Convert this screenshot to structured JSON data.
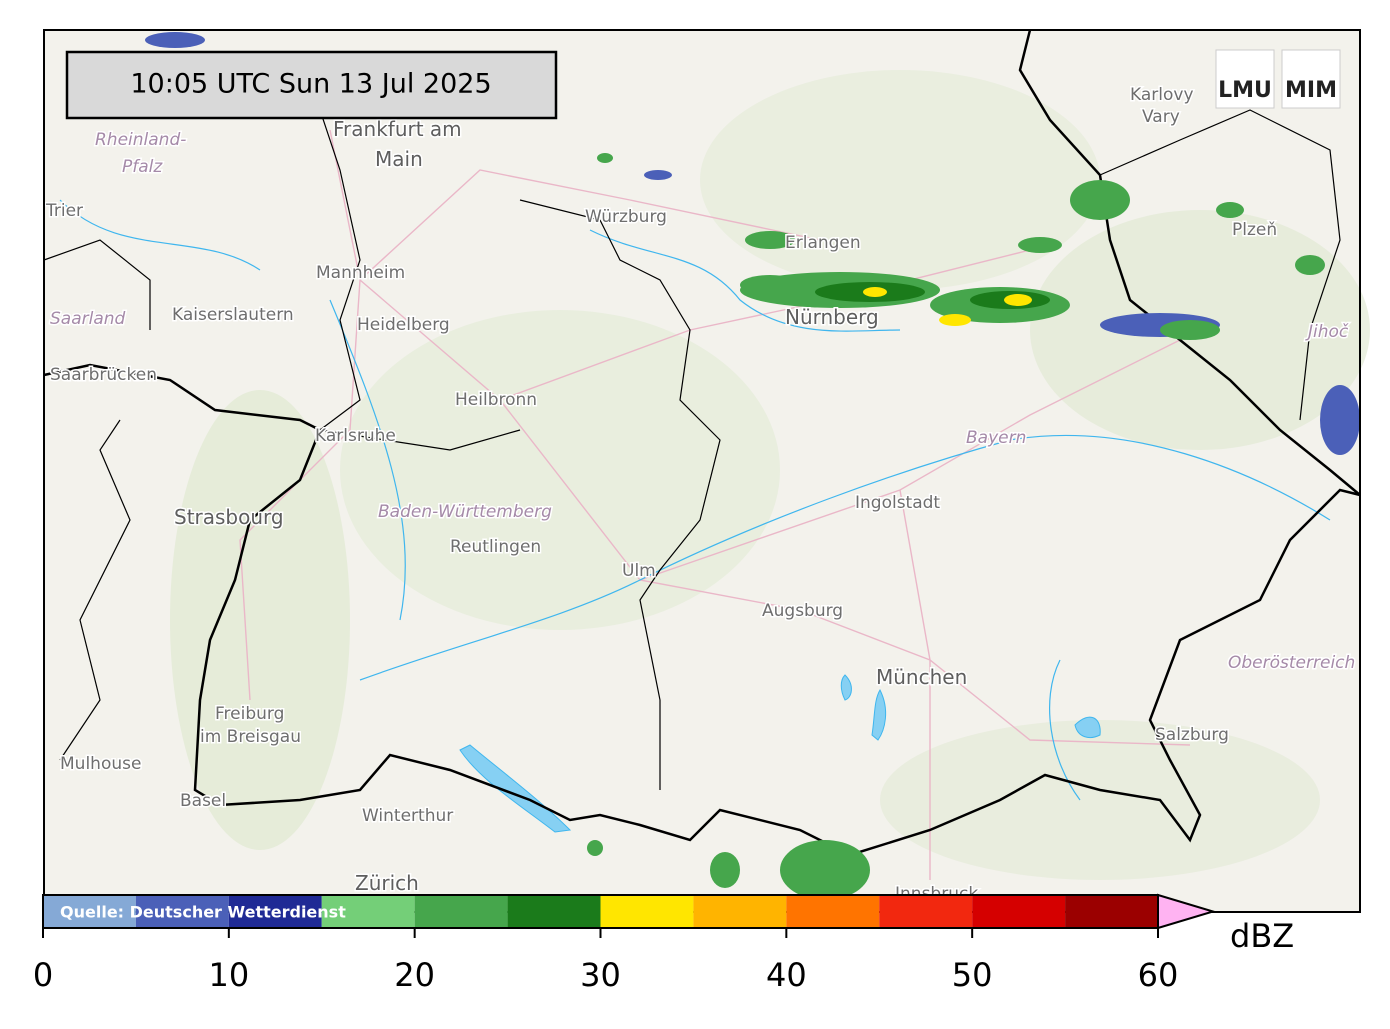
{
  "header": {
    "timestamp": "10:05 UTC  Sun 13 Jul 2025"
  },
  "logos": [
    "LMU",
    "MIM"
  ],
  "map": {
    "labels": [
      "Frankfurt am",
      "Main",
      "Rheinland-",
      "Pfalz",
      "Trier",
      "Mannheim",
      "Heidelberg",
      "Kaiserslautern",
      "Saarland",
      "Saarbrücken",
      "Würzburg",
      "Erlangen",
      "Nürnberg",
      "Heilbronn",
      "Karlsruhe",
      "Strasbourg",
      "Baden-Württemberg",
      "Reutlingen",
      "Ulm",
      "Ingolstadt",
      "Bayern",
      "Augsburg",
      "München",
      "Freiburg",
      "im Breisgau",
      "Mulhouse",
      "Basel",
      "Winterthur",
      "Zürich",
      "Innsbruck",
      "Salzburg",
      "Oberösterreich",
      "Karlovy",
      "Vary",
      "Plzeň",
      "Jihoč"
    ]
  },
  "colorbar": {
    "bounds": [
      0,
      5,
      10,
      15,
      20,
      25,
      30,
      35,
      40,
      45,
      50,
      55,
      60
    ],
    "colors": [
      "#85a9d6",
      "#4b60b8",
      "#1f2a95",
      "#74cf78",
      "#46a64c",
      "#1b7b1b",
      "#ffe600",
      "#ffb400",
      "#ff7400",
      "#f2280f",
      "#d50000",
      "#9b0000"
    ],
    "extend_color": "#ffb3f2",
    "ticks": [
      0,
      10,
      20,
      30,
      40,
      50,
      60
    ],
    "lim": [
      0,
      60
    ],
    "unit": "dBZ",
    "source": "Quelle: Deutscher Wetterdienst"
  }
}
